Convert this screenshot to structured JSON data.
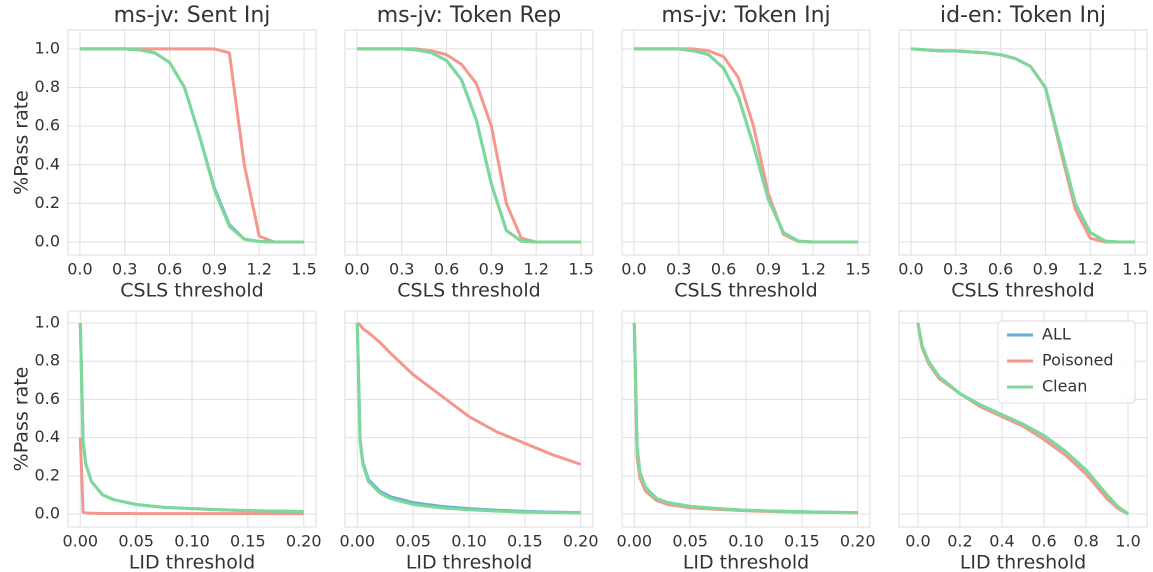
{
  "chart_data": [
    {
      "type": "line",
      "title": "ms-jv: Sent Inj",
      "xlabel": "CSLS threshold",
      "ylabel": "%Pass rate",
      "x": [
        0,
        0.1,
        0.2,
        0.3,
        0.4,
        0.5,
        0.6,
        0.7,
        0.8,
        0.9,
        1.0,
        1.1,
        1.2,
        1.3,
        1.4,
        1.5
      ],
      "series": [
        {
          "color": "#6aaed6",
          "values": [
            1,
            1,
            1,
            1,
            0.995,
            0.98,
            0.93,
            0.8,
            0.55,
            0.28,
            0.09,
            0.015,
            0.003,
            0,
            0,
            0
          ]
        },
        {
          "color": "#f4978e",
          "values": [
            1,
            1,
            1,
            1,
            1,
            1,
            1,
            1,
            1,
            1,
            0.98,
            0.4,
            0.03,
            0,
            0,
            0
          ]
        },
        {
          "color": "#7dd99a",
          "values": [
            1,
            1,
            1,
            1,
            0.995,
            0.98,
            0.93,
            0.8,
            0.55,
            0.27,
            0.08,
            0.015,
            0.003,
            0,
            0,
            0
          ]
        }
      ],
      "xlim": [
        -0.08,
        1.58
      ],
      "ylim": [
        -0.067,
        1.098
      ],
      "xticks": [
        {
          "value": 0,
          "label": "0.0"
        },
        0.3,
        0.6,
        0.9,
        1.2,
        1.5
      ],
      "yticks": [
        {
          "value": 0,
          "label": "0.0"
        },
        0.2,
        0.4,
        0.6,
        0.8,
        {
          "value": 1,
          "label": "1.0"
        }
      ],
      "grid": true
    },
    {
      "type": "line",
      "title": "ms-jv: Token Rep",
      "xlabel": "CSLS threshold",
      "x": [
        0,
        0.1,
        0.2,
        0.3,
        0.4,
        0.5,
        0.6,
        0.7,
        0.8,
        0.9,
        1.0,
        1.1,
        1.2,
        1.3,
        1.4,
        1.5
      ],
      "series": [
        {
          "color": "#6aaed6",
          "values": [
            1,
            1,
            1,
            1,
            0.995,
            0.98,
            0.94,
            0.84,
            0.63,
            0.3,
            0.06,
            0.005,
            0,
            0,
            0,
            0
          ]
        },
        {
          "color": "#f4978e",
          "values": [
            1,
            1,
            1,
            1,
            1,
            0.99,
            0.97,
            0.92,
            0.82,
            0.6,
            0.2,
            0.02,
            0,
            0,
            0,
            0
          ]
        },
        {
          "color": "#7dd99a",
          "values": [
            1,
            1,
            1,
            1,
            0.995,
            0.98,
            0.94,
            0.84,
            0.63,
            0.3,
            0.06,
            0.005,
            0,
            0,
            0,
            0
          ]
        }
      ],
      "xlim": [
        -0.08,
        1.58
      ],
      "ylim": [
        -0.067,
        1.098
      ],
      "xticks": [
        {
          "value": 0,
          "label": "0.0"
        },
        0.3,
        0.6,
        0.9,
        1.2,
        1.5
      ],
      "yticks": [
        0,
        0.2,
        0.4,
        0.6,
        0.8,
        1
      ],
      "grid": true
    },
    {
      "type": "line",
      "title": "ms-jv: Token Inj",
      "xlabel": "CSLS threshold",
      "x": [
        0,
        0.1,
        0.2,
        0.3,
        0.4,
        0.5,
        0.6,
        0.7,
        0.8,
        0.9,
        1.0,
        1.1,
        1.2,
        1.3,
        1.4,
        1.5
      ],
      "series": [
        {
          "color": "#6aaed6",
          "values": [
            1,
            1,
            1,
            1,
            0.99,
            0.97,
            0.9,
            0.75,
            0.5,
            0.22,
            0.05,
            0.005,
            0,
            0,
            0,
            0
          ]
        },
        {
          "color": "#f4978e",
          "values": [
            1,
            1,
            1,
            1,
            1,
            0.99,
            0.96,
            0.85,
            0.6,
            0.25,
            0.04,
            0.003,
            0,
            0,
            0,
            0
          ]
        },
        {
          "color": "#7dd99a",
          "values": [
            1,
            1,
            1,
            1,
            0.99,
            0.97,
            0.9,
            0.75,
            0.5,
            0.22,
            0.05,
            0.005,
            0,
            0,
            0,
            0
          ]
        }
      ],
      "xlim": [
        -0.08,
        1.58
      ],
      "ylim": [
        -0.067,
        1.098
      ],
      "xticks": [
        {
          "value": 0,
          "label": "0.0"
        },
        0.3,
        0.6,
        0.9,
        1.2,
        1.5
      ],
      "yticks": [
        0,
        0.2,
        0.4,
        0.6,
        0.8,
        1
      ],
      "grid": true
    },
    {
      "type": "line",
      "title": "id-en: Token Inj",
      "xlabel": "CSLS threshold",
      "x": [
        0,
        0.1,
        0.2,
        0.3,
        0.4,
        0.5,
        0.6,
        0.7,
        0.8,
        0.9,
        1.0,
        1.1,
        1.2,
        1.3,
        1.4,
        1.5
      ],
      "series": [
        {
          "color": "#6aaed6",
          "values": [
            1,
            0.995,
            0.99,
            0.99,
            0.985,
            0.98,
            0.97,
            0.95,
            0.91,
            0.8,
            0.5,
            0.2,
            0.05,
            0.005,
            0,
            0
          ]
        },
        {
          "color": "#f4978e",
          "values": [
            1,
            0.995,
            0.99,
            0.99,
            0.985,
            0.98,
            0.97,
            0.95,
            0.91,
            0.8,
            0.48,
            0.17,
            0.02,
            0,
            0,
            0
          ]
        },
        {
          "color": "#7dd99a",
          "values": [
            1,
            0.995,
            0.99,
            0.99,
            0.985,
            0.98,
            0.97,
            0.95,
            0.91,
            0.8,
            0.5,
            0.2,
            0.05,
            0.005,
            0,
            0
          ]
        }
      ],
      "xlim": [
        -0.08,
        1.58
      ],
      "ylim": [
        -0.067,
        1.098
      ],
      "xticks": [
        {
          "value": 0,
          "label": "0.0"
        },
        0.3,
        0.6,
        0.9,
        1.2,
        1.5
      ],
      "yticks": [
        0,
        0.2,
        0.4,
        0.6,
        0.8,
        1
      ],
      "grid": true
    },
    {
      "type": "line",
      "xlabel": "LID threshold",
      "ylabel": "%Pass rate",
      "x": [
        0,
        0.0025,
        0.005,
        0.01,
        0.02,
        0.03,
        0.05,
        0.075,
        0.1,
        0.125,
        0.15,
        0.175,
        0.2
      ],
      "series": [
        {
          "color": "#6aaed6",
          "values": [
            1,
            0.38,
            0.26,
            0.17,
            0.1,
            0.075,
            0.05,
            0.035,
            0.028,
            0.022,
            0.018,
            0.015,
            0.013
          ]
        },
        {
          "color": "#f4978e",
          "values": [
            0.4,
            0.01,
            0.005,
            0.004,
            0.003,
            0.003,
            0.002,
            0.002,
            0.002,
            0.002,
            0.002,
            0.002,
            0.002
          ]
        },
        {
          "color": "#7dd99a",
          "values": [
            1,
            0.38,
            0.26,
            0.17,
            0.1,
            0.075,
            0.05,
            0.035,
            0.028,
            0.022,
            0.018,
            0.015,
            0.013
          ]
        }
      ],
      "xlim": [
        -0.011,
        0.211
      ],
      "ylim": [
        -0.068,
        1.063
      ],
      "xticks": [
        {
          "value": 0,
          "label": "0.00"
        },
        0.05,
        {
          "value": 0.1,
          "label": "0.10"
        },
        0.15,
        {
          "value": 0.2,
          "label": "0.20"
        }
      ],
      "yticks": [
        {
          "value": 0,
          "label": "0.0"
        },
        0.2,
        0.4,
        0.6,
        0.8,
        {
          "value": 1,
          "label": "1.0"
        }
      ],
      "grid": true
    },
    {
      "type": "line",
      "xlabel": "LID threshold",
      "x": [
        0,
        0.0025,
        0.005,
        0.01,
        0.02,
        0.03,
        0.05,
        0.075,
        0.1,
        0.125,
        0.15,
        0.175,
        0.2
      ],
      "series": [
        {
          "color": "#6aaed6",
          "values": [
            1,
            0.39,
            0.27,
            0.18,
            0.12,
            0.09,
            0.06,
            0.04,
            0.028,
            0.02,
            0.014,
            0.01,
            0.007
          ]
        },
        {
          "color": "#f4978e",
          "values": [
            1,
            0.99,
            0.97,
            0.95,
            0.9,
            0.84,
            0.73,
            0.62,
            0.51,
            0.43,
            0.37,
            0.31,
            0.26
          ]
        },
        {
          "color": "#7dd99a",
          "values": [
            1,
            0.38,
            0.26,
            0.17,
            0.11,
            0.08,
            0.05,
            0.032,
            0.022,
            0.015,
            0.01,
            0.007,
            0.005
          ]
        }
      ],
      "xlim": [
        -0.011,
        0.211
      ],
      "ylim": [
        -0.068,
        1.063
      ],
      "xticks": [
        {
          "value": 0,
          "label": "0.00"
        },
        0.05,
        {
          "value": 0.1,
          "label": "0.10"
        },
        0.15,
        {
          "value": 0.2,
          "label": "0.20"
        }
      ],
      "yticks": [
        0,
        0.2,
        0.4,
        0.6,
        0.8,
        1
      ],
      "grid": true
    },
    {
      "type": "line",
      "xlabel": "LID threshold",
      "x": [
        0,
        0.0025,
        0.005,
        0.01,
        0.02,
        0.03,
        0.05,
        0.075,
        0.1,
        0.125,
        0.15,
        0.175,
        0.2
      ],
      "series": [
        {
          "color": "#6aaed6",
          "values": [
            1,
            0.35,
            0.22,
            0.14,
            0.08,
            0.06,
            0.04,
            0.028,
            0.02,
            0.015,
            0.012,
            0.009,
            0.007
          ]
        },
        {
          "color": "#f4978e",
          "values": [
            1,
            0.3,
            0.19,
            0.12,
            0.07,
            0.05,
            0.033,
            0.024,
            0.017,
            0.013,
            0.01,
            0.008,
            0.006
          ]
        },
        {
          "color": "#7dd99a",
          "values": [
            1,
            0.35,
            0.22,
            0.14,
            0.08,
            0.06,
            0.04,
            0.028,
            0.02,
            0.015,
            0.012,
            0.009,
            0.007
          ]
        }
      ],
      "xlim": [
        -0.011,
        0.211
      ],
      "ylim": [
        -0.068,
        1.063
      ],
      "xticks": [
        {
          "value": 0,
          "label": "0.00"
        },
        0.05,
        {
          "value": 0.1,
          "label": "0.10"
        },
        0.15,
        {
          "value": 0.2,
          "label": "0.20"
        }
      ],
      "yticks": [
        0,
        0.2,
        0.4,
        0.6,
        0.8,
        1
      ],
      "grid": true
    },
    {
      "type": "line",
      "xlabel": "LID threshold",
      "x": [
        0,
        0.02,
        0.05,
        0.1,
        0.2,
        0.3,
        0.4,
        0.5,
        0.6,
        0.7,
        0.8,
        0.9,
        0.95,
        1.0
      ],
      "series": [
        {
          "name": "ALL",
          "color": "#6aaed6",
          "values": [
            1,
            0.88,
            0.8,
            0.72,
            0.63,
            0.57,
            0.52,
            0.47,
            0.41,
            0.33,
            0.23,
            0.1,
            0.04,
            0
          ]
        },
        {
          "name": "Poisoned",
          "color": "#f4978e",
          "values": [
            1,
            0.87,
            0.79,
            0.71,
            0.63,
            0.56,
            0.51,
            0.46,
            0.39,
            0.31,
            0.21,
            0.08,
            0.03,
            0
          ]
        },
        {
          "name": "Clean",
          "color": "#7dd99a",
          "values": [
            1,
            0.88,
            0.8,
            0.72,
            0.63,
            0.57,
            0.52,
            0.47,
            0.41,
            0.33,
            0.23,
            0.1,
            0.04,
            0
          ]
        }
      ],
      "xlim": [
        -0.09,
        1.09
      ],
      "ylim": [
        -0.068,
        1.063
      ],
      "xticks": [
        {
          "value": 0,
          "label": "0.0"
        },
        0.2,
        0.4,
        0.6,
        0.8,
        {
          "value": 1,
          "label": "1.0"
        }
      ],
      "yticks": [
        0,
        0.2,
        0.4,
        0.6,
        0.8,
        1
      ],
      "grid": true,
      "legend": "upper right"
    }
  ]
}
